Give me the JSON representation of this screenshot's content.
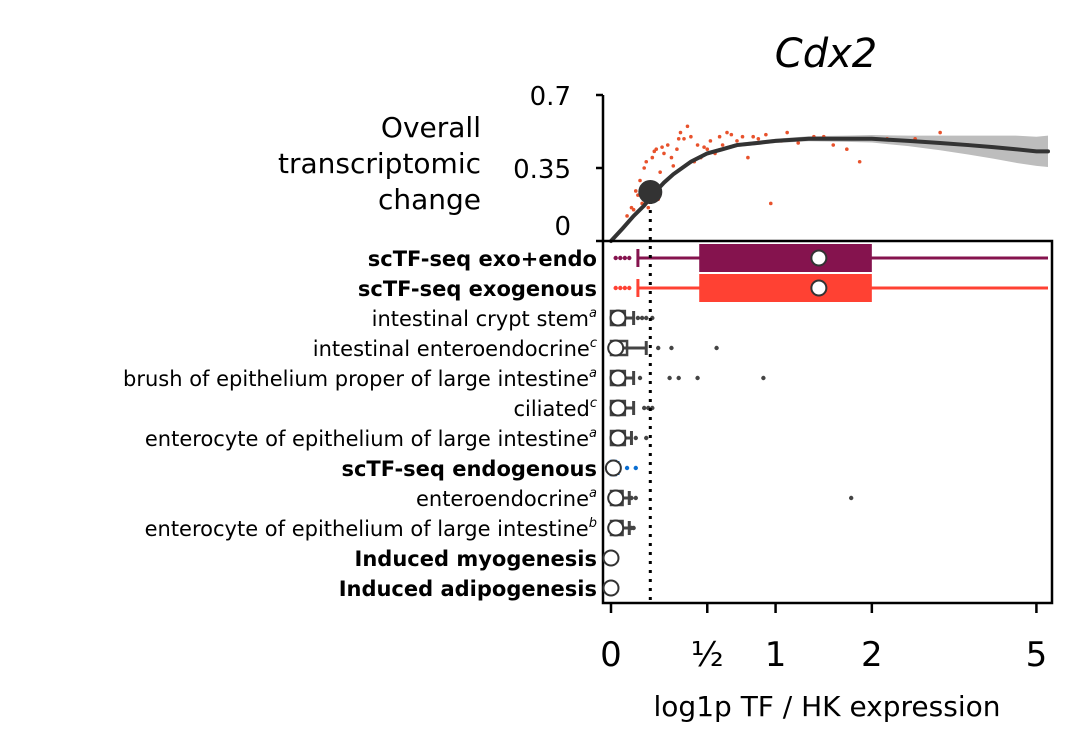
{
  "chart_data": [
    {
      "type": "scatter",
      "title": "Cdx2",
      "ylabel": "Overall transcriptomic change",
      "ylabel_lines": [
        "Overall",
        "transcriptomic",
        "change"
      ],
      "ylim": [
        0,
        0.7
      ],
      "yticks": [
        {
          "value": 0,
          "label": "0"
        },
        {
          "value": 0.35,
          "label": "0.35"
        },
        {
          "value": 0.7,
          "label": "0.7"
        }
      ],
      "point_color": "#e8522c",
      "curve_color": "#333333",
      "band_color": "#bdbdbd",
      "points": [
        [
          0.07,
          0.12
        ],
        [
          0.09,
          0.16
        ],
        [
          0.1,
          0.15
        ],
        [
          0.11,
          0.24
        ],
        [
          0.12,
          0.22
        ],
        [
          0.13,
          0.29
        ],
        [
          0.14,
          0.18
        ],
        [
          0.15,
          0.35
        ],
        [
          0.16,
          0.38
        ],
        [
          0.17,
          0.16
        ],
        [
          0.18,
          0.28
        ],
        [
          0.19,
          0.4
        ],
        [
          0.2,
          0.43
        ],
        [
          0.21,
          0.44
        ],
        [
          0.22,
          0.2
        ],
        [
          0.23,
          0.33
        ],
        [
          0.24,
          0.45
        ],
        [
          0.25,
          0.42
        ],
        [
          0.27,
          0.46
        ],
        [
          0.29,
          0.4
        ],
        [
          0.3,
          0.36
        ],
        [
          0.32,
          0.44
        ],
        [
          0.33,
          0.49
        ],
        [
          0.34,
          0.52
        ],
        [
          0.36,
          0.49
        ],
        [
          0.38,
          0.55
        ],
        [
          0.4,
          0.5
        ],
        [
          0.42,
          0.38
        ],
        [
          0.44,
          0.46
        ],
        [
          0.46,
          0.4
        ],
        [
          0.48,
          0.45
        ],
        [
          0.5,
          0.44
        ],
        [
          0.52,
          0.48
        ],
        [
          0.55,
          0.42
        ],
        [
          0.58,
          0.5
        ],
        [
          0.6,
          0.46
        ],
        [
          0.63,
          0.52
        ],
        [
          0.66,
          0.51
        ],
        [
          0.7,
          0.48
        ],
        [
          0.74,
          0.5
        ],
        [
          0.78,
          0.4
        ],
        [
          0.82,
          0.5
        ],
        [
          0.86,
          0.49
        ],
        [
          0.92,
          0.51
        ],
        [
          0.96,
          0.18
        ],
        [
          1.05,
          0.48
        ],
        [
          1.1,
          0.52
        ],
        [
          1.2,
          0.47
        ],
        [
          1.35,
          0.5
        ],
        [
          1.45,
          0.5
        ],
        [
          1.55,
          0.46
        ],
        [
          1.7,
          0.44
        ],
        [
          1.85,
          0.38
        ],
        [
          2.2,
          0.49
        ],
        [
          2.6,
          0.49
        ],
        [
          3.0,
          0.52
        ],
        [
          3.5,
          0.46
        ]
      ],
      "curve": [
        [
          0.0,
          0.0
        ],
        [
          0.05,
          0.06
        ],
        [
          0.1,
          0.12
        ],
        [
          0.15,
          0.17
        ],
        [
          0.2,
          0.23
        ],
        [
          0.25,
          0.28
        ],
        [
          0.3,
          0.32
        ],
        [
          0.4,
          0.38
        ],
        [
          0.5,
          0.42
        ],
        [
          0.6,
          0.44
        ],
        [
          0.7,
          0.46
        ],
        [
          0.85,
          0.47
        ],
        [
          1.0,
          0.48
        ],
        [
          1.3,
          0.49
        ],
        [
          1.7,
          0.49
        ],
        [
          2.0,
          0.49
        ],
        [
          2.5,
          0.48
        ],
        [
          3.0,
          0.47
        ],
        [
          3.5,
          0.46
        ],
        [
          4.0,
          0.45
        ],
        [
          4.5,
          0.44
        ],
        [
          5.0,
          0.43
        ],
        [
          5.3,
          0.43
        ]
      ],
      "band_half_width": [
        0.01,
        0.01,
        0.01,
        0.01,
        0.01,
        0.01,
        0.01,
        0.01,
        0.01,
        0.01,
        0.01,
        0.01,
        0.01,
        0.012,
        0.015,
        0.018,
        0.025,
        0.035,
        0.045,
        0.055,
        0.065,
        0.07,
        0.075
      ],
      "marker": {
        "x": 0.18,
        "y": 0.235
      }
    },
    {
      "type": "box",
      "xlabel": "log1p TF / HK expression",
      "xticks": [
        {
          "value": 0,
          "label": "0"
        },
        {
          "value": 0.5,
          "label": "½"
        },
        {
          "value": 1,
          "label": "1"
        },
        {
          "value": 2,
          "label": "2"
        },
        {
          "value": 5,
          "label": "5"
        }
      ],
      "xlim": [
        -0.05,
        5.3
      ],
      "threshold": 0.18,
      "rows": [
        {
          "label": "scTF-seq exo+endo",
          "sup": "",
          "color": "#85134e",
          "bold": true,
          "median": 1.4,
          "q1": 0.45,
          "q3": 2.0,
          "whisker_low": 0.12,
          "whisker_high": 5.3,
          "outliers": [
            0.02,
            0.04,
            0.06,
            0.08
          ],
          "style": "bar"
        },
        {
          "label": "scTF-seq exogenous",
          "sup": "",
          "color": "#ff4133",
          "bold": true,
          "median": 1.4,
          "q1": 0.45,
          "q3": 2.0,
          "whisker_low": 0.12,
          "whisker_high": 5.3,
          "outliers": [
            0.02,
            0.04,
            0.06,
            0.08
          ],
          "style": "bar"
        },
        {
          "label": "intestinal crypt stem",
          "sup": "a",
          "color": "#000000",
          "bold": false,
          "median": 0.03,
          "q1": 0.0,
          "q3": 0.06,
          "whisker_low": 0.0,
          "whisker_high": 0.1,
          "outliers": [
            0.12,
            0.14,
            0.16,
            0.19
          ],
          "style": "box"
        },
        {
          "label": "intestinal enteroendocrine",
          "sup": "c",
          "color": "#000000",
          "bold": false,
          "median": 0.02,
          "q1": 0.0,
          "q3": 0.07,
          "whisker_low": 0.0,
          "whisker_high": 0.16,
          "outliers": [
            0.22,
            0.29,
            0.56
          ],
          "style": "box"
        },
        {
          "label": "brush of epithelium proper of large intestine",
          "sup": "a",
          "color": "#000000",
          "bold": false,
          "median": 0.03,
          "q1": 0.0,
          "q3": 0.06,
          "whisker_low": 0.0,
          "whisker_high": 0.1,
          "outliers": [
            0.13,
            0.28,
            0.33,
            0.44,
            0.9
          ],
          "style": "box"
        },
        {
          "label": "ciliated",
          "sup": "c",
          "color": "#000000",
          "bold": false,
          "median": 0.03,
          "q1": 0.0,
          "q3": 0.06,
          "whisker_low": 0.0,
          "whisker_high": 0.1,
          "outliers": [
            0.15,
            0.17,
            0.19
          ],
          "style": "box"
        },
        {
          "label": "enterocyte of epithelium of large intestine",
          "sup": "a",
          "color": "#000000",
          "bold": false,
          "median": 0.03,
          "q1": 0.0,
          "q3": 0.06,
          "whisker_low": 0.0,
          "whisker_high": 0.09,
          "outliers": [
            0.11,
            0.16
          ],
          "style": "box"
        },
        {
          "label": "scTF-seq endogenous",
          "sup": "",
          "color": "#0a6ed1",
          "bold": true,
          "median": 0.01,
          "q1": 0.0,
          "q3": 0.02,
          "whisker_low": 0.0,
          "whisker_high": 0.03,
          "outliers": [
            0.07,
            0.11
          ],
          "style": "box"
        },
        {
          "label": "enteroendocrine",
          "sup": "a",
          "color": "#000000",
          "bold": false,
          "median": 0.02,
          "q1": 0.0,
          "q3": 0.05,
          "whisker_low": 0.0,
          "whisker_high": 0.08,
          "outliers": [
            0.09,
            0.11,
            1.75
          ],
          "style": "box"
        },
        {
          "label": "enterocyte of epithelium of large intestine",
          "sup": "b",
          "color": "#000000",
          "bold": false,
          "median": 0.02,
          "q1": 0.0,
          "q3": 0.05,
          "whisker_low": 0.0,
          "whisker_high": 0.08,
          "outliers": [
            0.09,
            0.1
          ],
          "style": "box"
        },
        {
          "label": "Induced myogenesis",
          "sup": "",
          "color": "#2ebd2e",
          "bold": true,
          "median": 0.0,
          "q1": 0.0,
          "q3": 0.0,
          "whisker_low": 0.0,
          "whisker_high": 0.0,
          "outliers": [],
          "style": "box"
        },
        {
          "label": "Induced adipogenesis",
          "sup": "",
          "color": "#2ebd2e",
          "bold": true,
          "median": 0.0,
          "q1": 0.0,
          "q3": 0.0,
          "whisker_low": 0.0,
          "whisker_high": 0.0,
          "outliers": [],
          "style": "box"
        }
      ]
    }
  ]
}
